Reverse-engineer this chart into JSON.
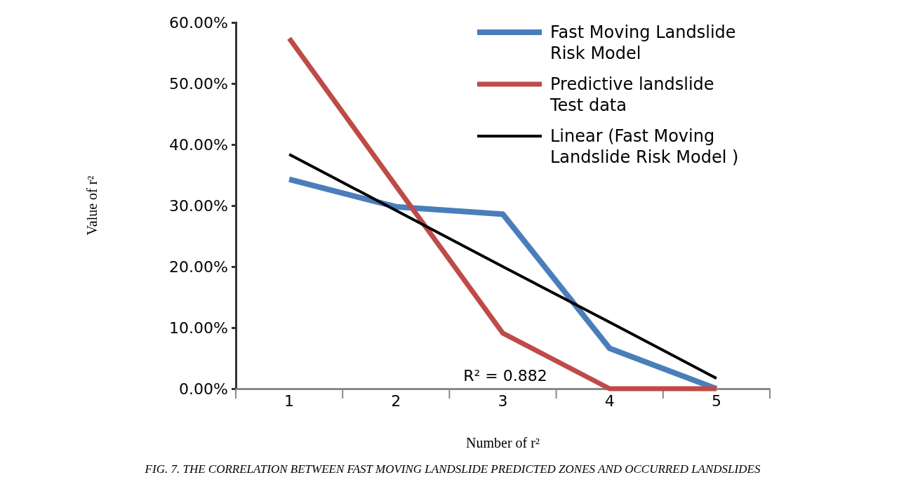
{
  "chart_data": {
    "type": "line",
    "categories": [
      "1",
      "2",
      "3",
      "4",
      "5"
    ],
    "ylabel": "Value of r²",
    "xlabel": "Number of r²",
    "ylim": [
      0,
      60
    ],
    "yticks": [
      {
        "value": 0,
        "label": "0.00%"
      },
      {
        "value": 10,
        "label": "10.00%"
      },
      {
        "value": 20,
        "label": "20.00%"
      },
      {
        "value": 30,
        "label": "30.00%"
      },
      {
        "value": 40,
        "label": "40.00%"
      },
      {
        "value": 50,
        "label": "50.00%"
      },
      {
        "value": 60,
        "label": "60.00%"
      }
    ],
    "series": [
      {
        "name": "Fast Moving Landslide Risk  Model",
        "color": "#4a7ebb",
        "values": [
          34.3,
          29.8,
          28.6,
          6.6,
          0
        ]
      },
      {
        "name": "Predictive landslide Test data",
        "color": "#be4b48",
        "values": [
          57.4,
          33.2,
          9.1,
          0,
          0
        ]
      },
      {
        "name": "Linear (Fast Moving Landslide Risk  Model )",
        "color": "#000000",
        "values": [
          38.4,
          29.2,
          20.0,
          10.9,
          1.7
        ]
      }
    ],
    "annotations": [
      "R² = 0.882",
      "FIG. 7. THE CORRELATION BETWEEN FAST MOVING LANDSLIDE PREDICTED ZONES AND OCCURRED LANDSLIDES"
    ],
    "legend": "top right",
    "grid": false,
    "marker": "none",
    "line_style": "solid"
  }
}
